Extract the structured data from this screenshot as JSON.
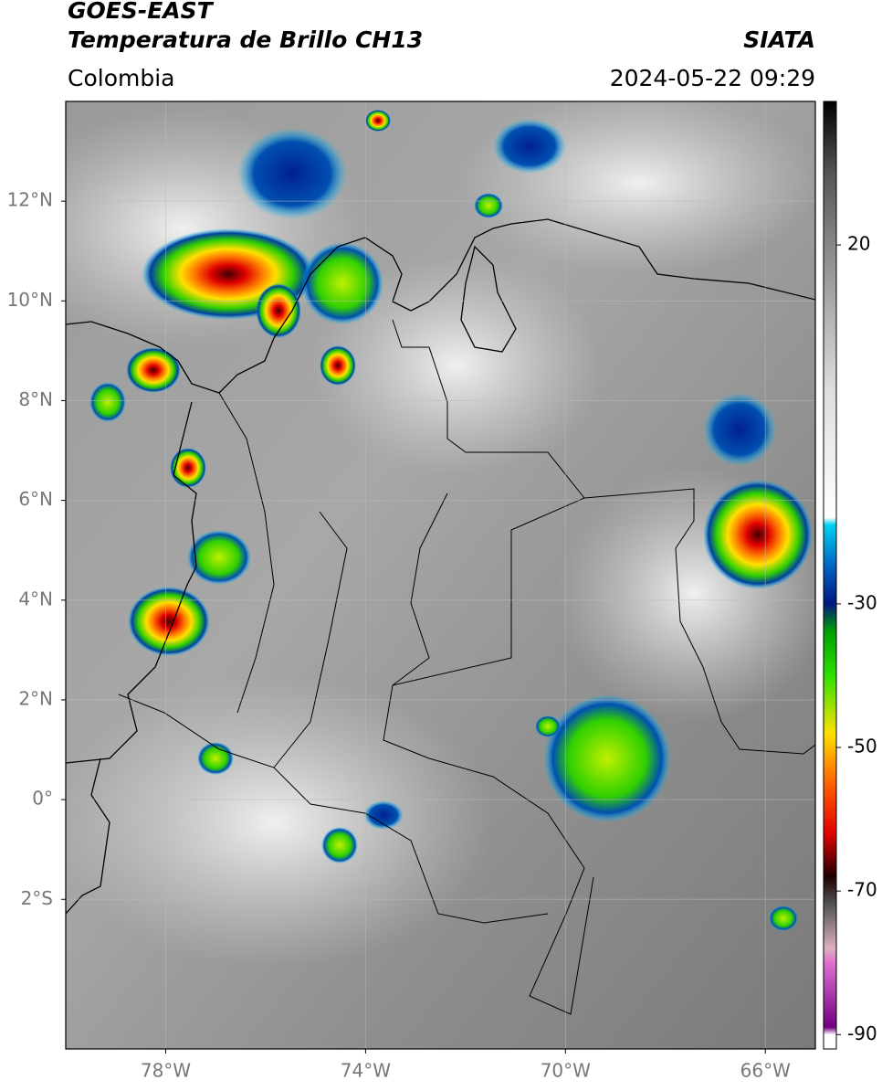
{
  "header": {
    "title": "GOES-EAST",
    "subtitle": "Temperatura de Brillo CH13",
    "source": "SIATA",
    "region": "Colombia",
    "timestamp": "2024-05-22 09:29"
  },
  "map": {
    "xlim": [
      -80,
      -65
    ],
    "ylim": [
      -5,
      14
    ],
    "xticks": [
      {
        "value": -78,
        "label": "78°W"
      },
      {
        "value": -74,
        "label": "74°W"
      },
      {
        "value": -70,
        "label": "70°W"
      },
      {
        "value": -66,
        "label": "66°W"
      }
    ],
    "yticks": [
      {
        "value": 12,
        "label": "12°N"
      },
      {
        "value": 10,
        "label": "10°N"
      },
      {
        "value": 8,
        "label": "8°N"
      },
      {
        "value": 6,
        "label": "6°N"
      },
      {
        "value": 4,
        "label": "4°N"
      },
      {
        "value": 2,
        "label": "2°N"
      },
      {
        "value": 0,
        "label": "0°"
      },
      {
        "value": -2,
        "label": "2°S"
      }
    ],
    "grid": true
  },
  "colorbar": {
    "lim": [
      -92,
      40
    ],
    "ticks": [
      20,
      -30,
      -50,
      -70,
      -90
    ]
  }
}
